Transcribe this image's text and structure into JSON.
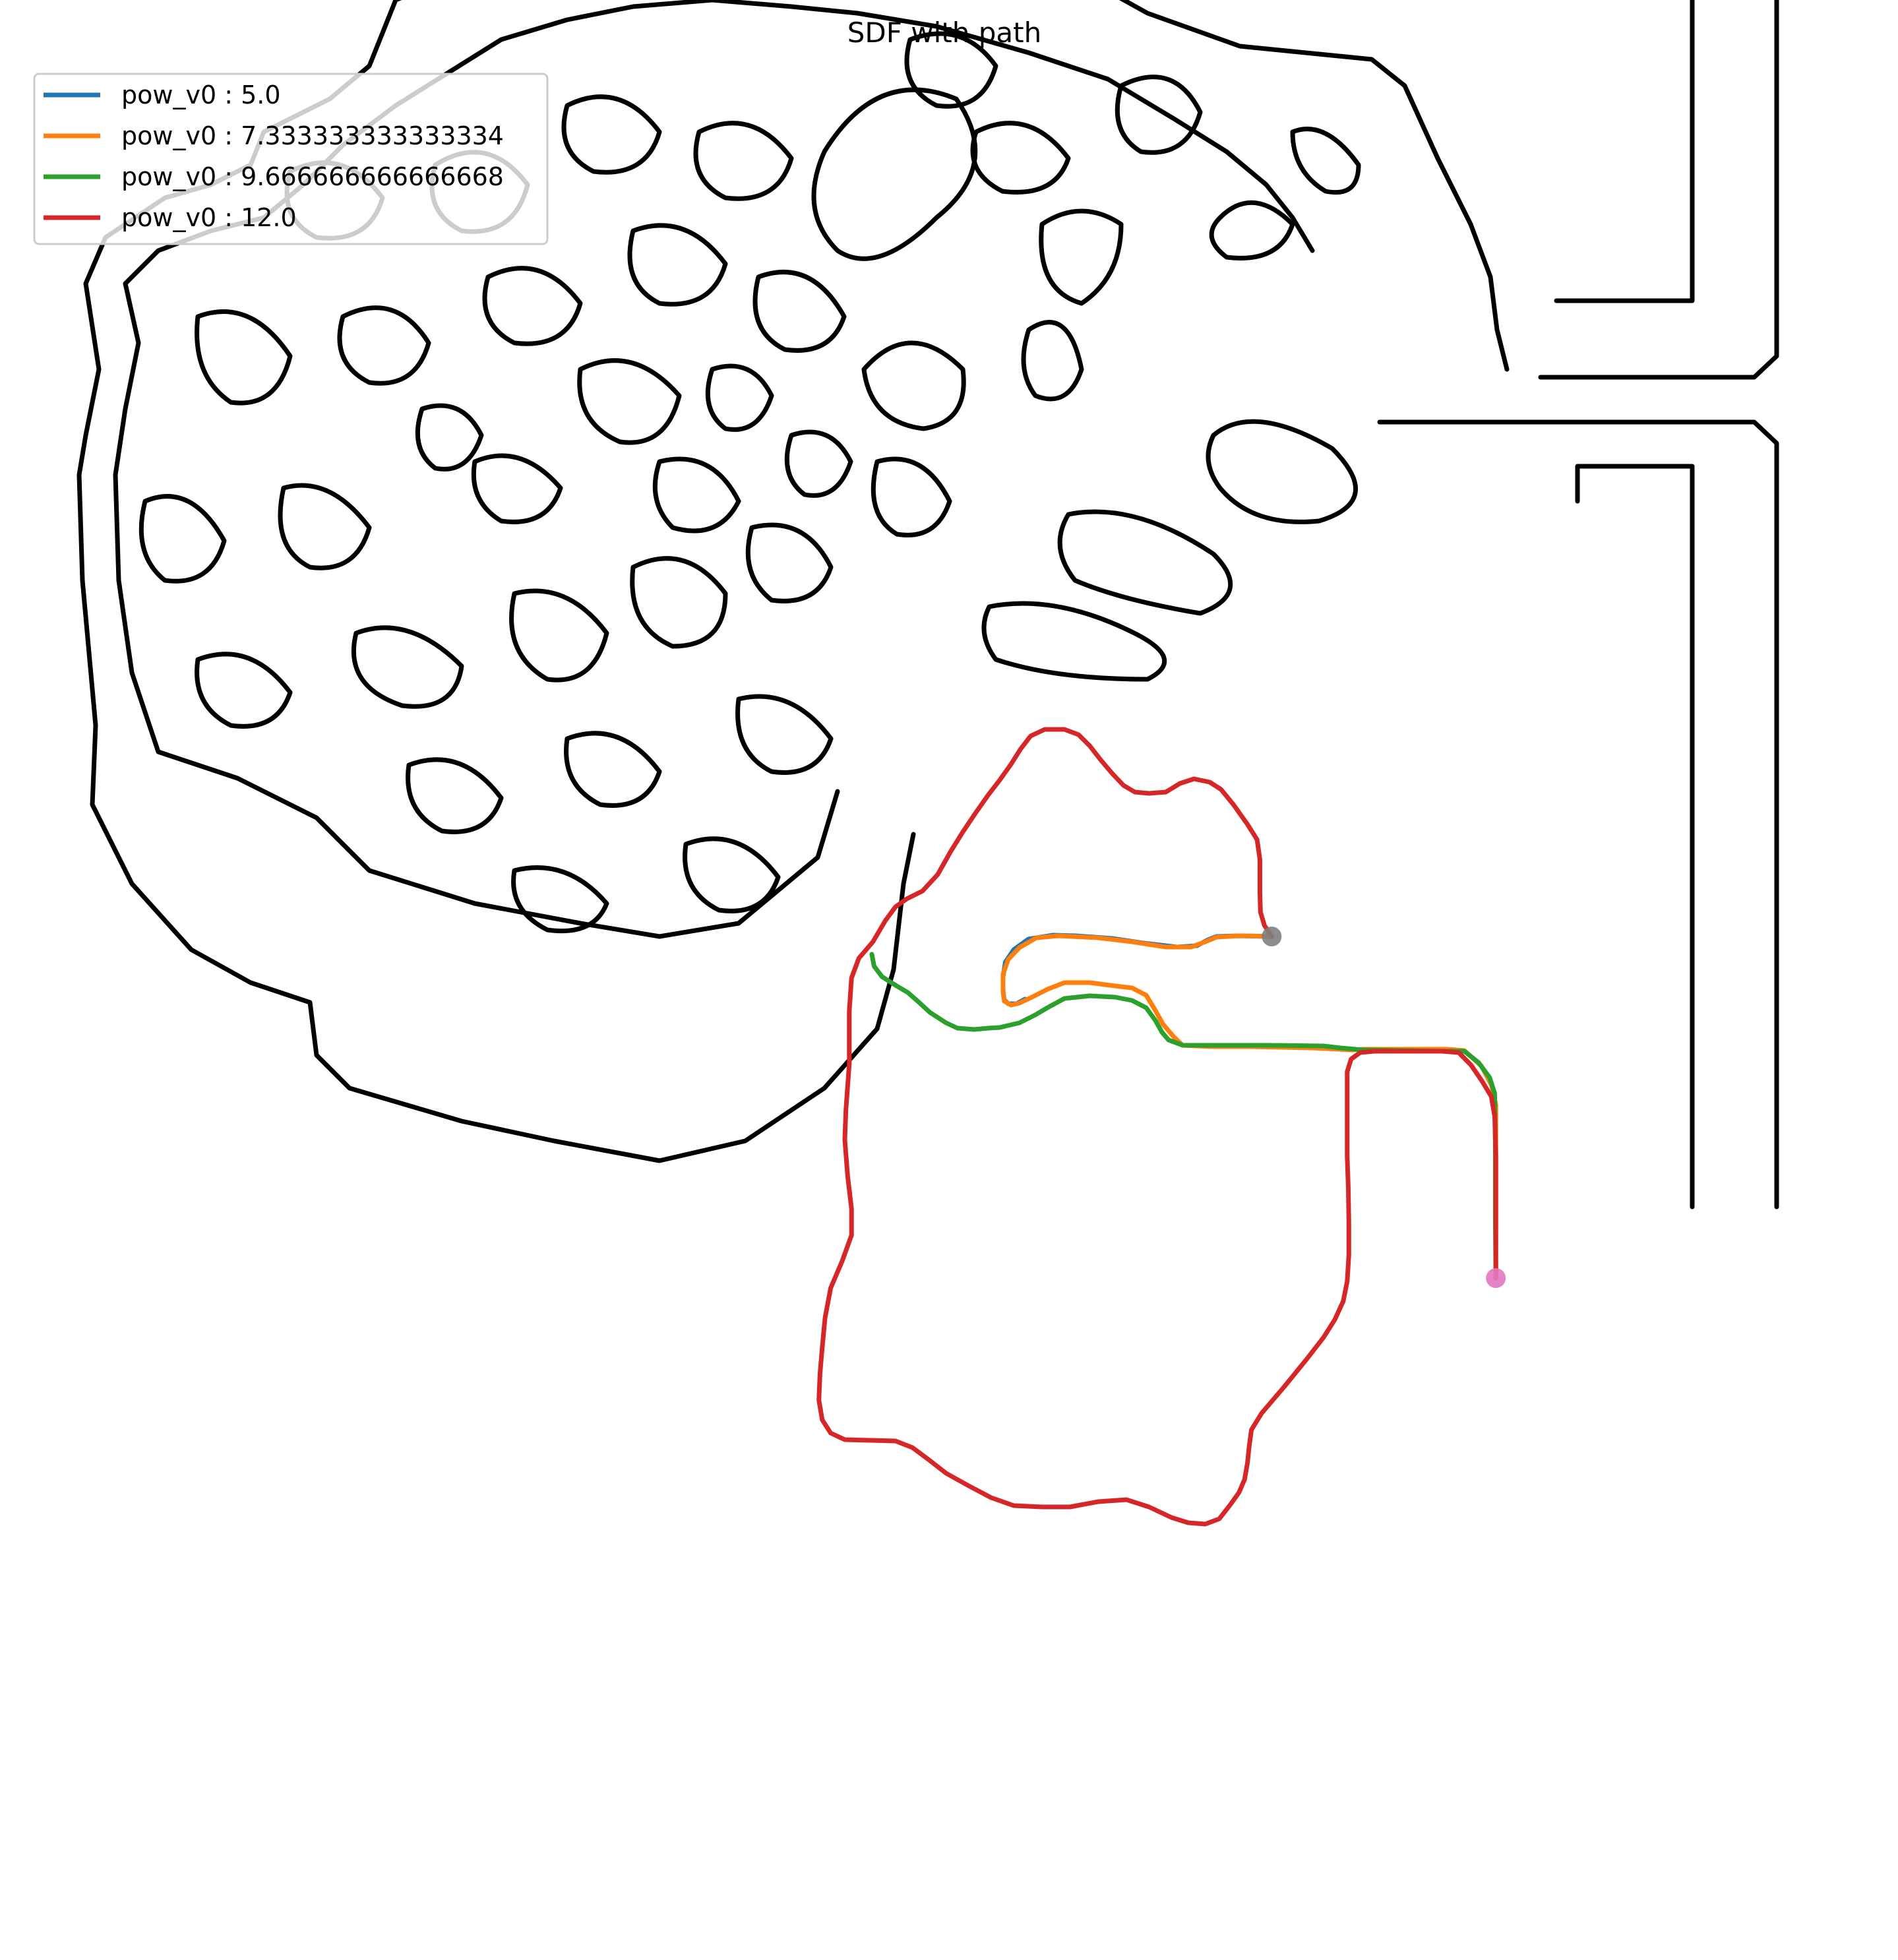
{
  "chart_data": {
    "type": "line",
    "title": "SDF with path",
    "xlabel": "",
    "ylabel": "",
    "grid": false,
    "axes_visible": false,
    "legend_placement": "top-left",
    "series": [
      {
        "name": "pow_v0 : 5.0",
        "color": "#1f77b4",
        "points": [
          [
            2258,
            567
          ],
          [
            2200,
            566
          ],
          [
            2160,
            567
          ],
          [
            2145,
            572
          ],
          [
            2125,
            581
          ],
          [
            2090,
            583
          ],
          [
            2030,
            577
          ],
          [
            1975,
            570
          ],
          [
            1910,
            566
          ],
          [
            1870,
            565
          ],
          [
            1826,
            571
          ],
          [
            1800,
            587
          ],
          [
            1785,
            606
          ],
          [
            1781,
            628
          ],
          [
            1781,
            650
          ],
          [
            1783,
            663
          ],
          [
            1790,
            669
          ],
          [
            1805,
            669
          ],
          [
            1820,
            662
          ]
        ]
      },
      {
        "name": "pow_v0 : 7.333333333333334",
        "color": "#ff7f0e",
        "points": [
          [
            2258,
            567
          ],
          [
            2200,
            566
          ],
          [
            2160,
            568
          ],
          [
            2140,
            575
          ],
          [
            2115,
            583
          ],
          [
            2070,
            583
          ],
          [
            2010,
            575
          ],
          [
            1950,
            569
          ],
          [
            1880,
            566
          ],
          [
            1840,
            569
          ],
          [
            1810,
            584
          ],
          [
            1790,
            602
          ],
          [
            1781,
            624
          ],
          [
            1781,
            648
          ],
          [
            1783,
            665
          ],
          [
            1795,
            671
          ],
          [
            1810,
            668
          ],
          [
            1830,
            660
          ],
          [
            1860,
            647
          ],
          [
            1890,
            637
          ],
          [
            1935,
            637
          ],
          [
            1980,
            642
          ],
          [
            2010,
            645
          ],
          [
            2035,
            656
          ],
          [
            2050,
            677
          ],
          [
            2065,
            700
          ],
          [
            2085,
            720
          ],
          [
            2100,
            732
          ],
          [
            2150,
            734
          ],
          [
            2220,
            734
          ],
          [
            2330,
            736
          ],
          [
            2400,
            739
          ],
          [
            2420,
            738
          ],
          [
            2570,
            738
          ],
          [
            2600,
            740
          ],
          [
            2630,
            763
          ],
          [
            2648,
            792
          ],
          [
            2656,
            822
          ],
          [
            2656,
            890
          ],
          [
            2656,
            980
          ],
          [
            2656,
            1085
          ]
        ]
      },
      {
        "name": "pow_v0 : 9.666666666666668",
        "color": "#2ca02c",
        "points": [
          [
            1548,
            594
          ],
          [
            1552,
            612
          ],
          [
            1566,
            628
          ],
          [
            1592,
            642
          ],
          [
            1612,
            652
          ],
          [
            1628,
            664
          ],
          [
            1651,
            682
          ],
          [
            1680,
            698
          ],
          [
            1700,
            706
          ],
          [
            1730,
            708
          ],
          [
            1755,
            706
          ],
          [
            1775,
            705
          ],
          [
            1810,
            698
          ],
          [
            1838,
            686
          ],
          [
            1862,
            674
          ],
          [
            1890,
            661
          ],
          [
            1935,
            657
          ],
          [
            1980,
            659
          ],
          [
            2010,
            664
          ],
          [
            2035,
            675
          ],
          [
            2052,
            695
          ],
          [
            2063,
            712
          ],
          [
            2075,
            724
          ],
          [
            2100,
            732
          ],
          [
            2250,
            732
          ],
          [
            2350,
            733
          ],
          [
            2380,
            736
          ],
          [
            2420,
            739
          ],
          [
            2560,
            741
          ],
          [
            2600,
            741
          ],
          [
            2625,
            758
          ],
          [
            2645,
            781
          ],
          [
            2654,
            805
          ],
          [
            2655,
            880
          ],
          [
            2655,
            990
          ],
          [
            2656,
            1085
          ]
        ]
      },
      {
        "name": "pow_v0 : 12.0",
        "color": "#d62728",
        "points": [
          [
            2258,
            567
          ],
          [
            2245,
            550
          ],
          [
            2238,
            530
          ],
          [
            2237,
            500
          ],
          [
            2237,
            450
          ],
          [
            2232,
            420
          ],
          [
            2215,
            397
          ],
          [
            2190,
            367
          ],
          [
            2168,
            344
          ],
          [
            2148,
            333
          ],
          [
            2120,
            328
          ],
          [
            2095,
            335
          ],
          [
            2070,
            348
          ],
          [
            2040,
            350
          ],
          [
            2015,
            348
          ],
          [
            1995,
            338
          ],
          [
            1975,
            320
          ],
          [
            1955,
            300
          ],
          [
            1935,
            278
          ],
          [
            1915,
            261
          ],
          [
            1890,
            253
          ],
          [
            1855,
            253
          ],
          [
            1830,
            263
          ],
          [
            1812,
            283
          ],
          [
            1795,
            306
          ],
          [
            1775,
            330
          ],
          [
            1755,
            352
          ],
          [
            1732,
            380
          ],
          [
            1710,
            408
          ],
          [
            1688,
            438
          ],
          [
            1665,
            473
          ],
          [
            1638,
            498
          ],
          [
            1610,
            510
          ],
          [
            1590,
            522
          ],
          [
            1572,
            543
          ],
          [
            1550,
            575
          ],
          [
            1525,
            600
          ],
          [
            1512,
            630
          ],
          [
            1508,
            680
          ],
          [
            1508,
            760
          ],
          [
            1502,
            830
          ],
          [
            1500,
            875
          ],
          [
            1505,
            930
          ],
          [
            1512,
            980
          ],
          [
            1512,
            1020
          ],
          [
            1495,
            1060
          ],
          [
            1475,
            1100
          ],
          [
            1465,
            1145
          ],
          [
            1460,
            1190
          ],
          [
            1456,
            1230
          ],
          [
            1454,
            1270
          ],
          [
            1460,
            1300
          ],
          [
            1475,
            1320
          ],
          [
            1500,
            1330
          ],
          [
            1545,
            1331
          ],
          [
            1590,
            1332
          ],
          [
            1620,
            1342
          ],
          [
            1650,
            1361
          ],
          [
            1680,
            1381
          ],
          [
            1720,
            1400
          ],
          [
            1760,
            1418
          ],
          [
            1800,
            1430
          ],
          [
            1850,
            1432
          ],
          [
            1900,
            1432
          ],
          [
            1950,
            1424
          ],
          [
            2000,
            1421
          ],
          [
            2040,
            1432
          ],
          [
            2080,
            1448
          ],
          [
            2110,
            1456
          ],
          [
            2140,
            1458
          ],
          [
            2165,
            1450
          ],
          [
            2185,
            1428
          ],
          [
            2200,
            1410
          ],
          [
            2210,
            1390
          ],
          [
            2215,
            1365
          ],
          [
            2218,
            1340
          ],
          [
            2222,
            1315
          ],
          [
            2240,
            1290
          ],
          [
            2280,
            1250
          ],
          [
            2320,
            1208
          ],
          [
            2350,
            1175
          ],
          [
            2370,
            1148
          ],
          [
            2385,
            1120
          ],
          [
            2392,
            1090
          ],
          [
            2395,
            1050
          ],
          [
            2395,
            1000
          ],
          [
            2394,
            950
          ],
          [
            2392,
            900
          ],
          [
            2392,
            810
          ],
          [
            2392,
            772
          ],
          [
            2399,
            753
          ],
          [
            2415,
            743
          ],
          [
            2440,
            741
          ],
          [
            2560,
            741
          ],
          [
            2590,
            743
          ],
          [
            2612,
            762
          ],
          [
            2632,
            787
          ],
          [
            2648,
            810
          ],
          [
            2654,
            840
          ],
          [
            2656,
            900
          ],
          [
            2656,
            1000
          ],
          [
            2656,
            1085
          ]
        ]
      }
    ],
    "markers": [
      {
        "name": "start",
        "color": "#7f7f7f",
        "point": [
          2258,
          567
        ]
      },
      {
        "name": "goal",
        "color": "#e377c2",
        "point": [
          2656,
          1085
        ]
      }
    ]
  }
}
